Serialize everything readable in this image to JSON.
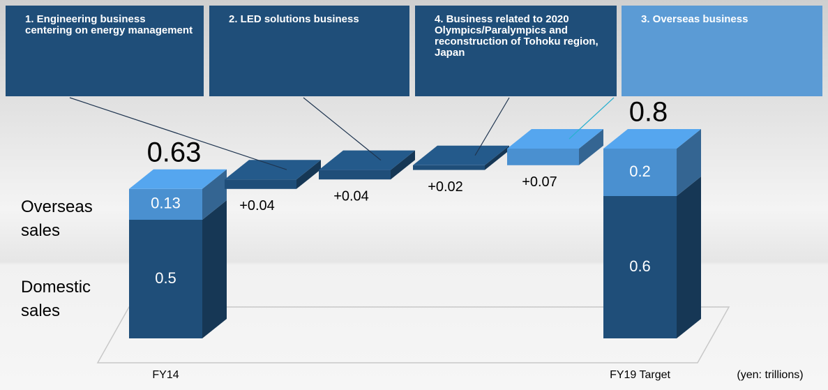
{
  "chart_data": {
    "type": "waterfall",
    "categories": [
      "FY14",
      null,
      null,
      null,
      null,
      "FY19 Target"
    ],
    "series": [
      {
        "name": "Domestic sales",
        "color": "#1f4e79",
        "values": [
          0.5,
          null,
          null,
          null,
          null,
          0.6
        ]
      },
      {
        "name": "Overseas sales",
        "color": "#4a90d0",
        "values": [
          0.13,
          null,
          null,
          null,
          null,
          0.2
        ]
      }
    ],
    "totals": [
      0.63,
      null,
      null,
      null,
      null,
      0.8
    ],
    "increments": {
      "values": [
        null,
        0.04,
        0.04,
        0.02,
        0.07,
        null
      ],
      "value_labels": [
        null,
        "+0.04",
        "+0.04",
        "+0.02",
        "+0.07",
        null
      ],
      "colors": [
        null,
        "#1f4e79",
        "#1f4e79",
        "#1f4e79",
        "#4a90d0",
        null
      ]
    },
    "annotations": [
      {
        "text": "1. Engineering business centering on energy management",
        "color": "#1f4e79"
      },
      {
        "text": "2. LED solutions business",
        "color": "#1f4e79"
      },
      {
        "text": "4. Business related to 2020 Olympics/Paralympics and reconstruction of Tohoku region, Japan",
        "color": "#1f4e79"
      },
      {
        "text": "3. Overseas business",
        "color": "#5b9bd5"
      }
    ],
    "unit_note": "(yen: trillions)"
  }
}
